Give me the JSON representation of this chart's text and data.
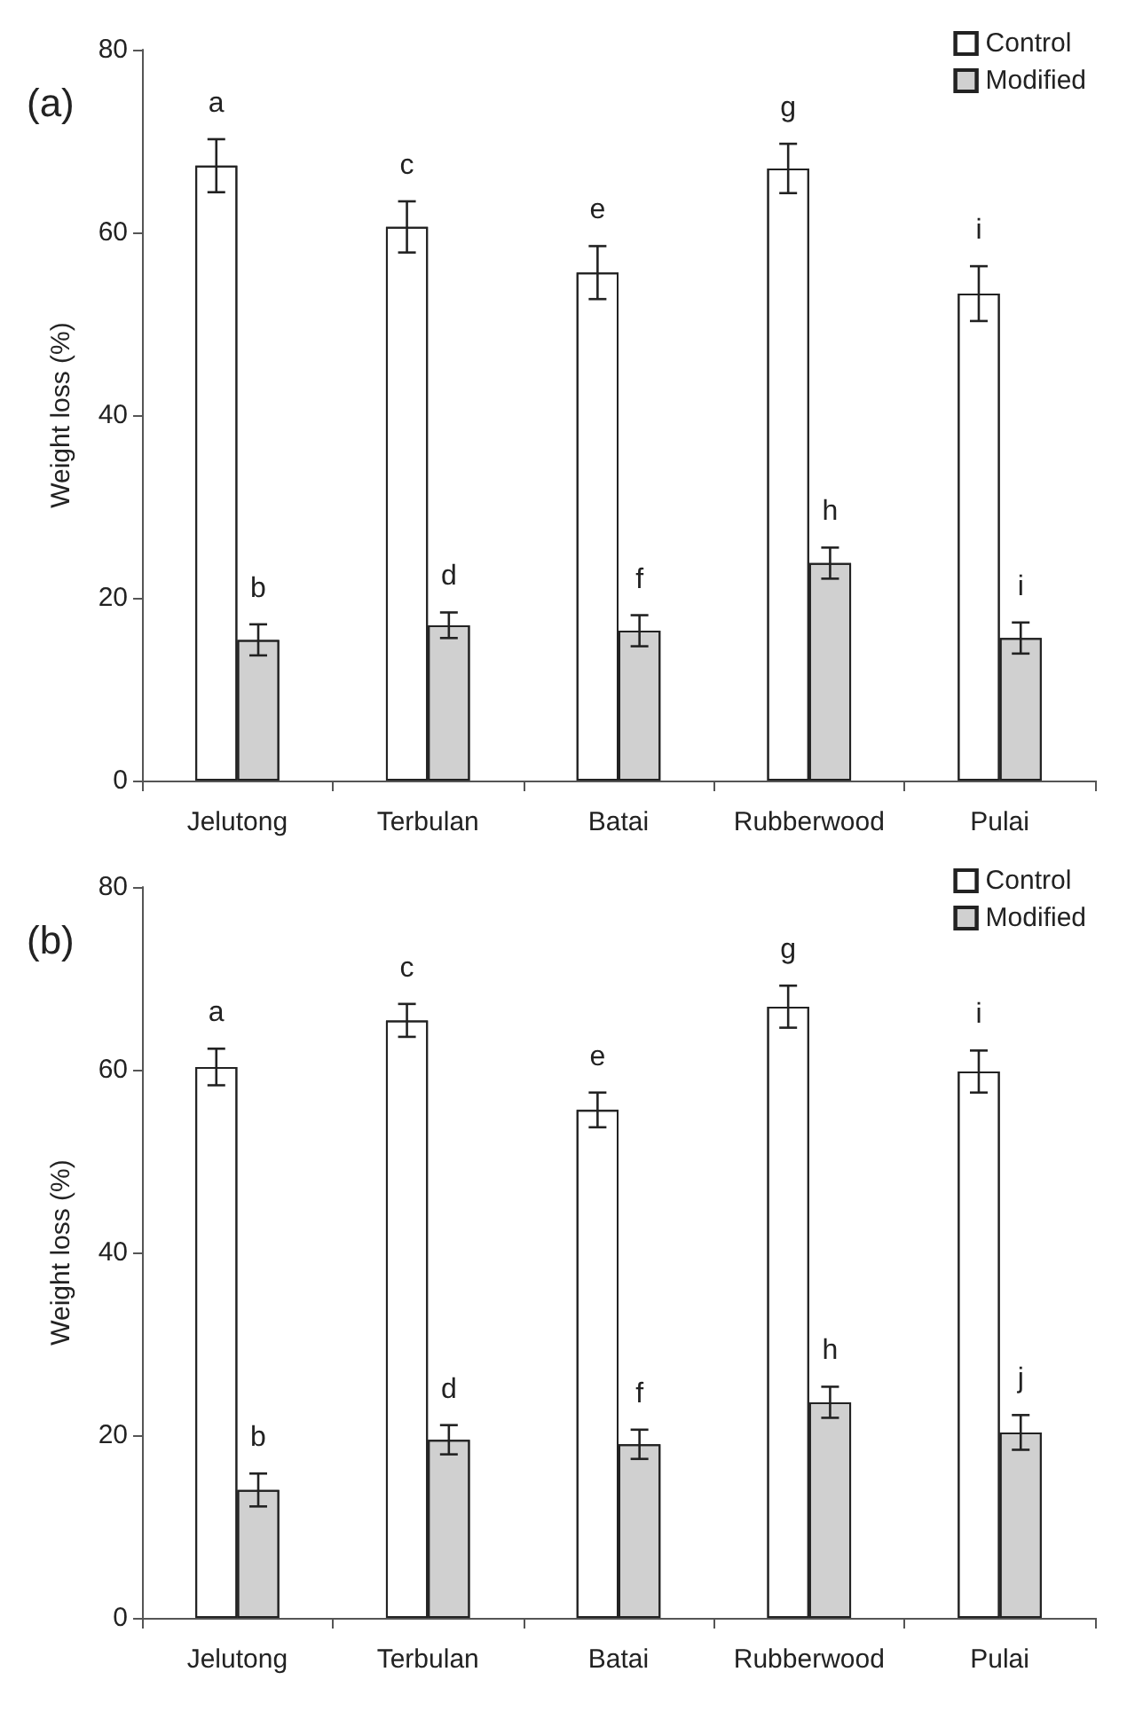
{
  "chart_data": [
    {
      "type": "bar",
      "title": "(a)",
      "ylabel": "Weight loss (%)",
      "categories": [
        "Jelutong",
        "Terbulan",
        "Batai",
        "Rubberwood",
        "Pulai"
      ],
      "ylim": [
        0,
        80
      ],
      "yticks": [
        0,
        20,
        40,
        60,
        80
      ],
      "grid": false,
      "legend": "top right",
      "series": [
        {
          "name": "Control",
          "color": "#ffffff",
          "values": [
            67.3,
            60.6,
            55.6,
            67.0,
            53.3
          ],
          "errors": [
            2.9,
            2.8,
            2.9,
            2.7,
            3.0
          ],
          "value_labels": [
            "a",
            "c",
            "e",
            "g",
            "i"
          ]
        },
        {
          "name": "Modified",
          "color": "#d0d0d0",
          "values": [
            15.4,
            17.0,
            16.4,
            23.8,
            15.6
          ],
          "errors": [
            1.7,
            1.4,
            1.7,
            1.7,
            1.7
          ],
          "value_labels": [
            "b",
            "d",
            "f",
            "h",
            "i"
          ]
        }
      ]
    },
    {
      "type": "bar",
      "title": "(b)",
      "ylabel": "Weight loss (%)",
      "categories": [
        "Jelutong",
        "Terbulan",
        "Batai",
        "Rubberwood",
        "Pulai"
      ],
      "ylim": [
        0,
        80
      ],
      "yticks": [
        0,
        20,
        40,
        60,
        80
      ],
      "grid": false,
      "legend": "top right",
      "series": [
        {
          "name": "Control",
          "color": "#ffffff",
          "values": [
            60.3,
            65.4,
            55.6,
            66.9,
            59.8
          ],
          "errors": [
            2.0,
            1.8,
            1.9,
            2.3,
            2.3
          ],
          "value_labels": [
            "a",
            "c",
            "e",
            "g",
            "i"
          ]
        },
        {
          "name": "Modified",
          "color": "#d0d0d0",
          "values": [
            14.0,
            19.5,
            19.0,
            23.6,
            20.3
          ],
          "errors": [
            1.8,
            1.6,
            1.6,
            1.7,
            1.9
          ],
          "value_labels": [
            "b",
            "d",
            "f",
            "h",
            "j"
          ]
        }
      ]
    }
  ]
}
